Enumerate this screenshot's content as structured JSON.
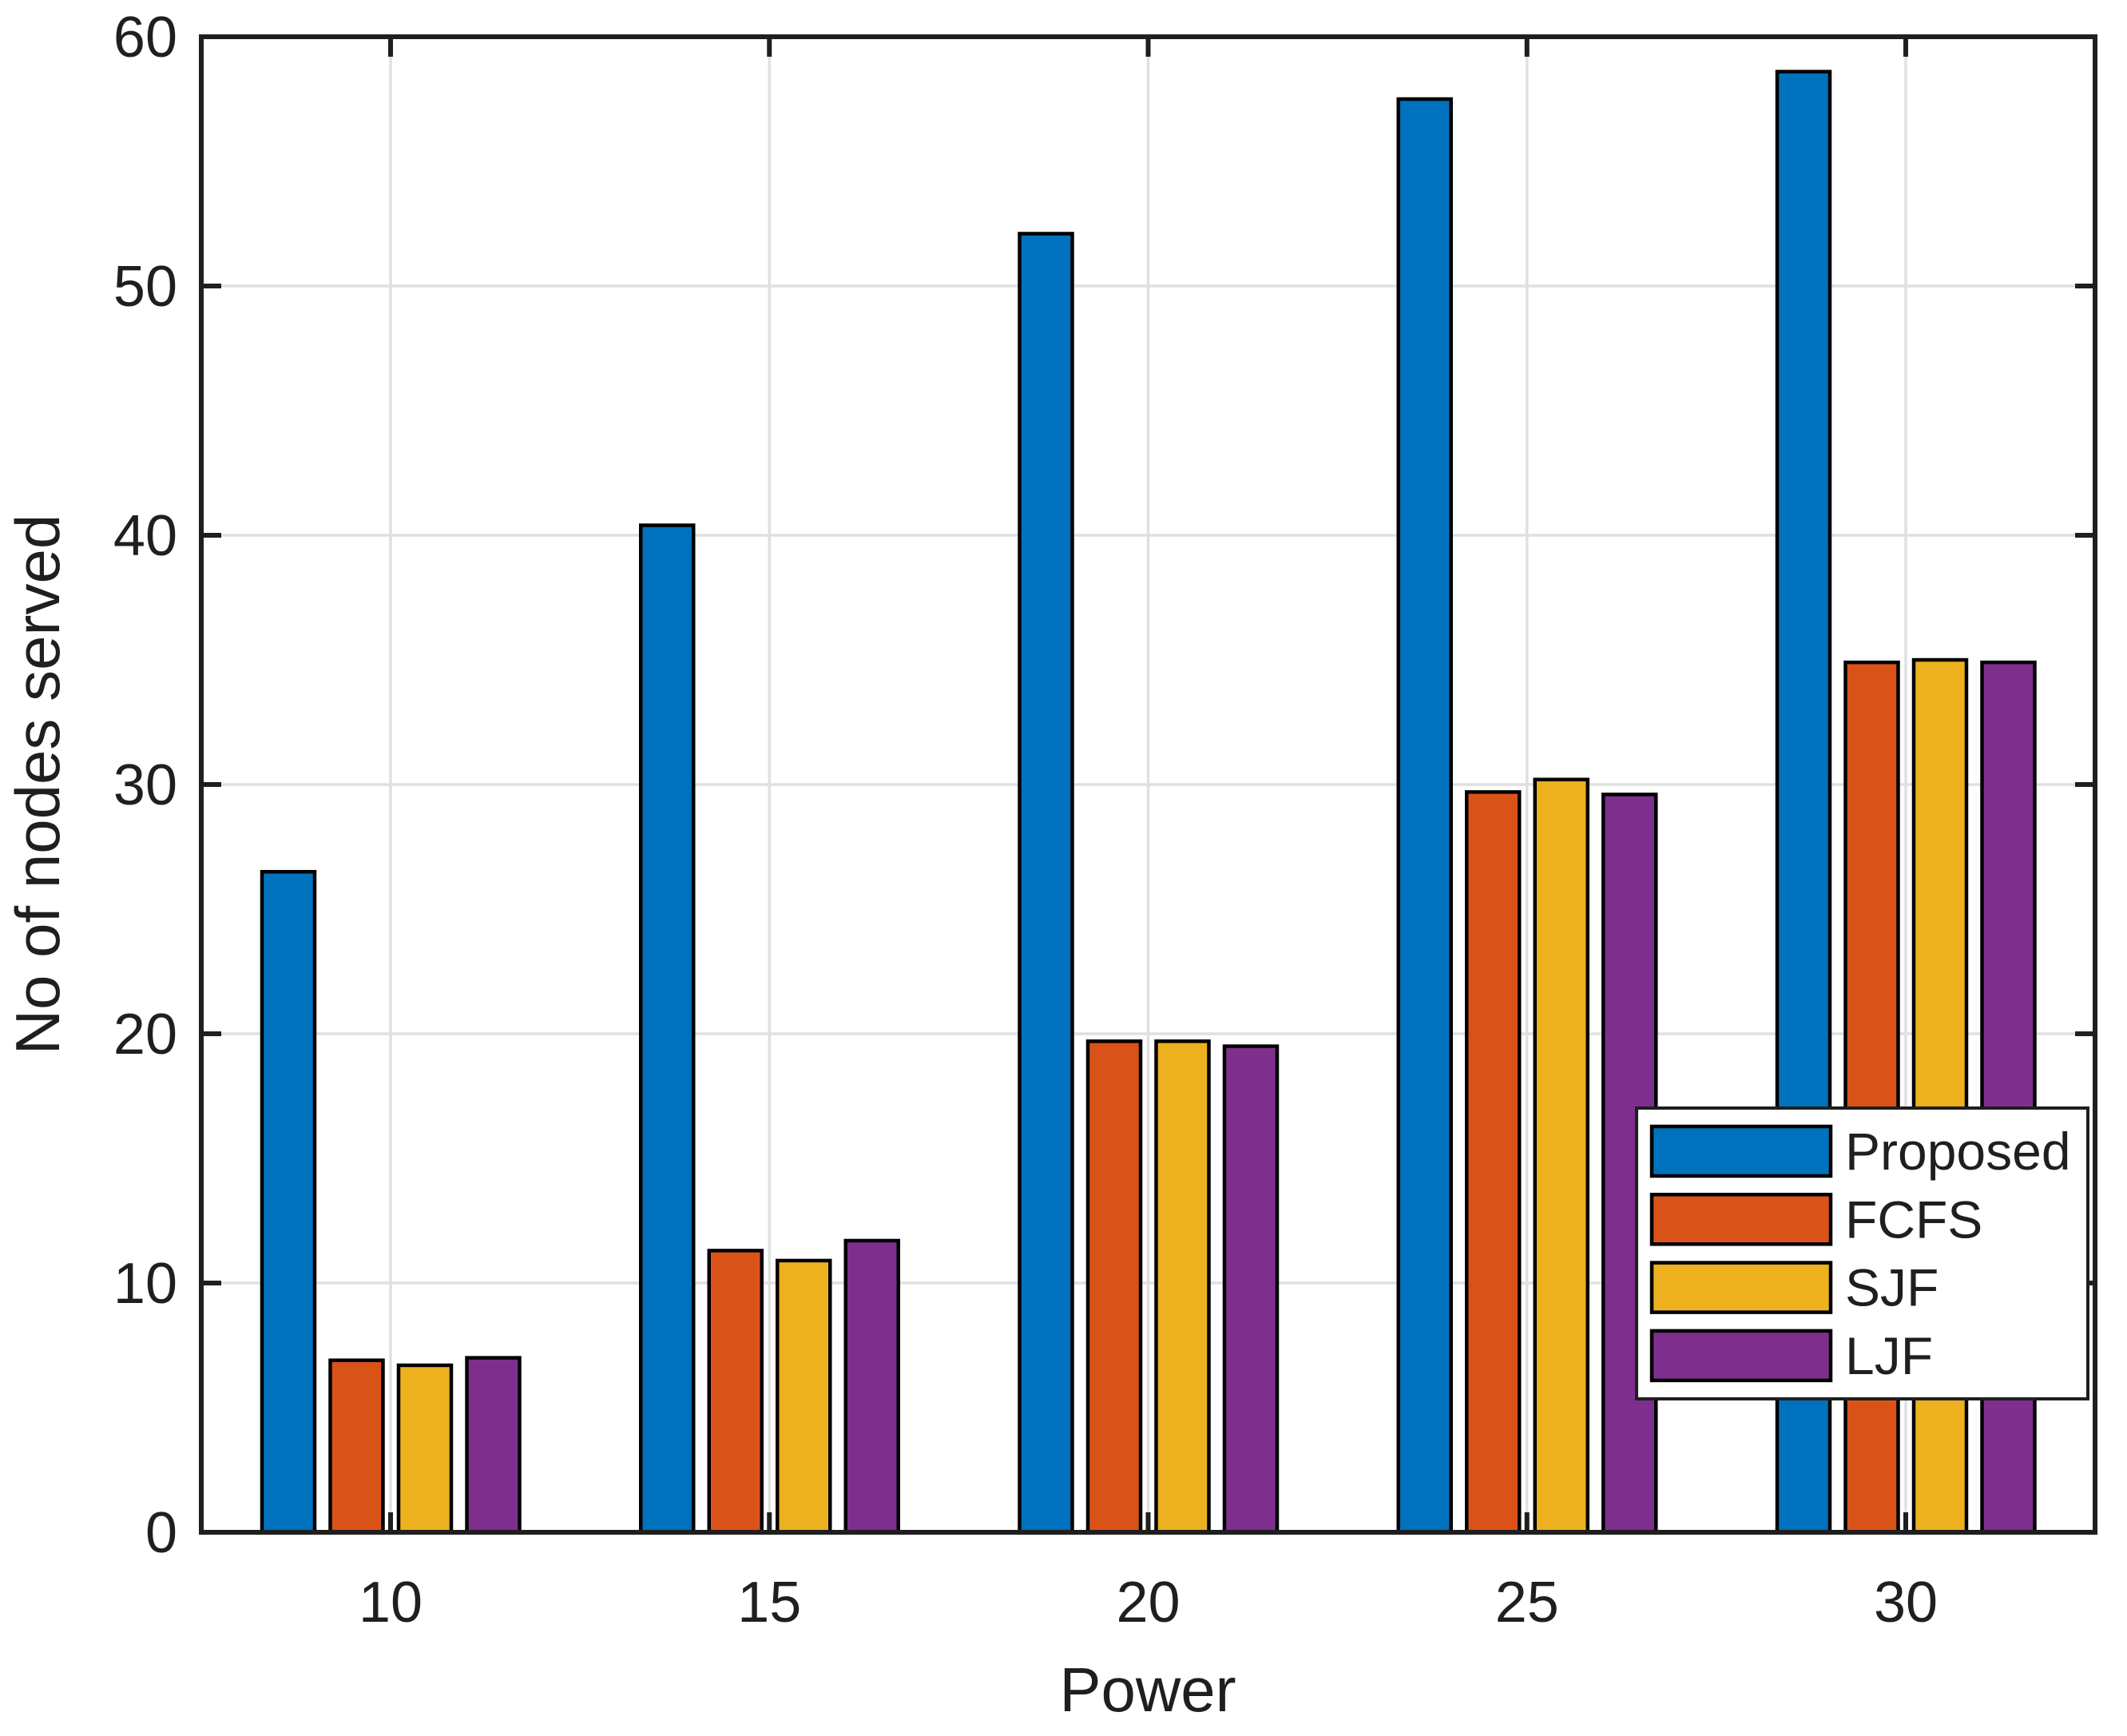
{
  "figure": {
    "background": "#FFFFFF",
    "axis_color": "#1F1F1F",
    "grid_color": "#E0E0E0",
    "bar_edge_color": "#000000",
    "legend_background": "#FFFFFF"
  },
  "chart_data": {
    "type": "bar",
    "title": "",
    "xlabel": "Power",
    "ylabel": "No of nodes served",
    "categories": [
      "10",
      "15",
      "20",
      "25",
      "30"
    ],
    "series": [
      {
        "name": "Proposed",
        "color": "#0072BD",
        "values": [
          26.5,
          40.4,
          52.1,
          57.5,
          58.6
        ]
      },
      {
        "name": "FCFS",
        "color": "#D95319",
        "values": [
          6.9,
          11.3,
          19.7,
          29.7,
          34.9
        ]
      },
      {
        "name": "SJF",
        "color": "#EDB120",
        "values": [
          6.7,
          10.9,
          19.7,
          30.2,
          35.0
        ]
      },
      {
        "name": "LJF",
        "color": "#7E2F8E",
        "values": [
          7.0,
          11.7,
          19.5,
          29.6,
          34.9
        ]
      }
    ],
    "ylim": [
      0,
      60
    ],
    "yticks": [
      0,
      10,
      20,
      30,
      40,
      50,
      60
    ],
    "grid": true,
    "legend_position": "inset-bottom-right",
    "legend_labels": [
      "Proposed",
      "FCFS",
      "SJF",
      "LJF"
    ]
  }
}
